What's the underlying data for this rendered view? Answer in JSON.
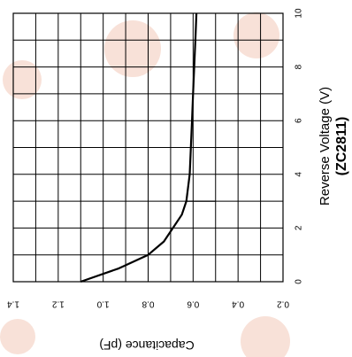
{
  "chart_data": {
    "type": "line",
    "title": "",
    "subtitle": "(ZC2811)",
    "xlabel": "Reverse Voltage (V)",
    "ylabel": "Capacitance (pF)",
    "orientation": "rotated-90-clockwise",
    "xlim": [
      0,
      10
    ],
    "ylim": [
      0.2,
      1.4
    ],
    "x_ticks": [
      "0",
      "2",
      "4",
      "6",
      "8",
      "10"
    ],
    "y_ticks": [
      "1.4",
      "1.2",
      "1.0",
      "0.8",
      "0.6",
      "0.4",
      "0.2"
    ],
    "grid": true,
    "series": [
      {
        "color": "#000000",
        "x": [
          0,
          0.5,
          1,
          1.5,
          2,
          2.5,
          3,
          4,
          5,
          6,
          7,
          8,
          9,
          10
        ],
        "y": [
          1.1,
          0.93,
          0.8,
          0.73,
          0.69,
          0.65,
          0.63,
          0.615,
          0.61,
          0.605,
          0.6,
          0.595,
          0.59,
          0.585
        ]
      }
    ],
    "annotations": [
      {
        "type": "reference-segment",
        "x": 3,
        "y_from": 0.5,
        "y_to": 0.63
      }
    ]
  }
}
